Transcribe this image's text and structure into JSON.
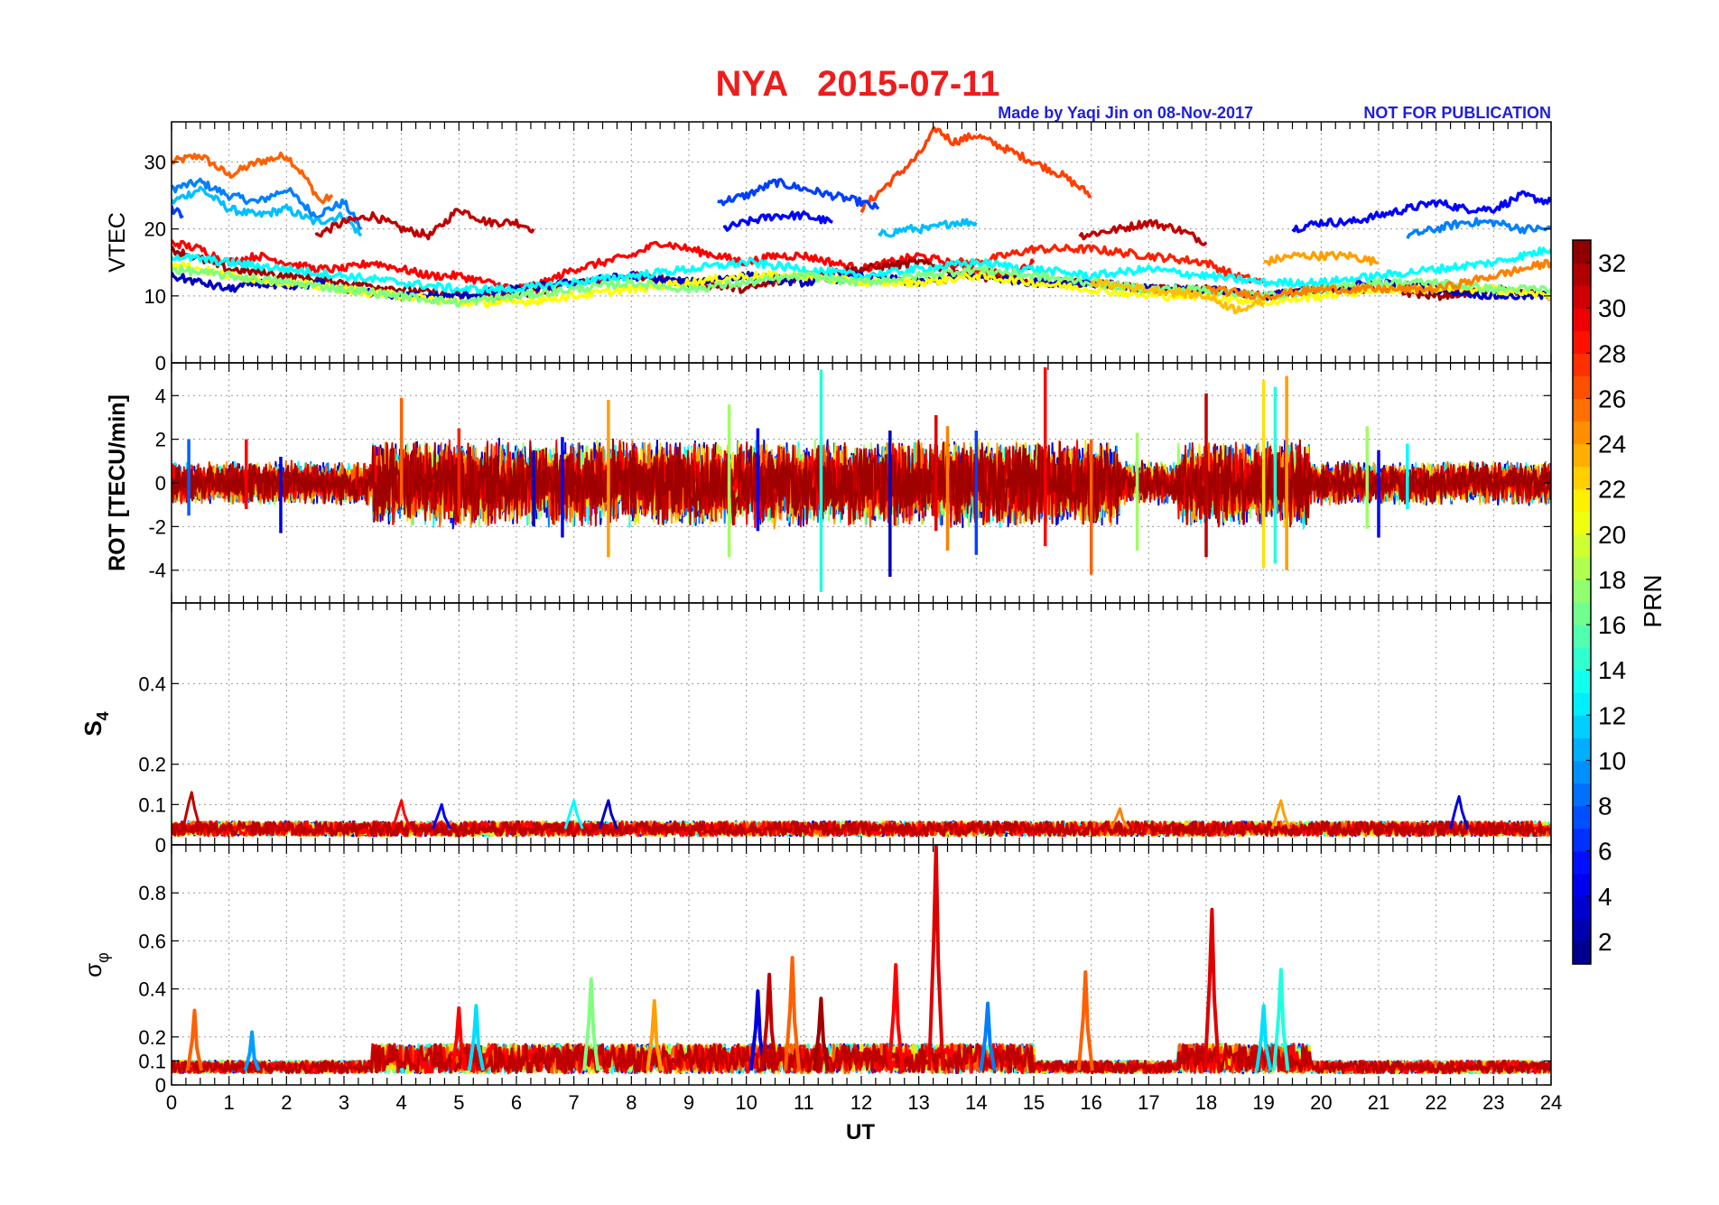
{
  "chart_data": {
    "type": "line",
    "title": "NYA   2015-07-11",
    "credit": "Made by Yaqi Jin on 08-Nov-2017",
    "notice": "NOT FOR PUBLICATION",
    "xlabel": "UT",
    "xlim": [
      0,
      24
    ],
    "xticks": [
      "0",
      "1",
      "2",
      "3",
      "4",
      "5",
      "6",
      "7",
      "8",
      "9",
      "10",
      "11",
      "12",
      "13",
      "14",
      "15",
      "16",
      "17",
      "18",
      "19",
      "20",
      "21",
      "22",
      "23",
      "24"
    ],
    "colorbar": {
      "label": "PRN",
      "range": [
        1,
        33
      ],
      "ticks": [
        "2",
        "4",
        "6",
        "8",
        "10",
        "12",
        "14",
        "16",
        "18",
        "20",
        "22",
        "24",
        "26",
        "28",
        "30",
        "32"
      ],
      "colormap": "jet"
    },
    "panels": [
      {
        "id": "vtec",
        "ylabel": "VTEC",
        "ylim": [
          0,
          36
        ],
        "yticks": [
          "0",
          "10",
          "20",
          "30"
        ],
        "series": [
          {
            "prn": 26,
            "x": [
              0.0,
              0.5,
              1.0,
              1.5,
              2.0,
              2.3,
              2.6,
              2.8
            ],
            "y": [
              30,
              31,
              28,
              30,
              31,
              28,
              24,
              25
            ]
          },
          {
            "prn": 9,
            "x": [
              0.0,
              0.5,
              1.0,
              1.5,
              2.0,
              2.5,
              3.0,
              3.3
            ],
            "y": [
              26,
              27,
              25,
              24,
              26,
              22,
              24,
              20
            ]
          },
          {
            "prn": 11,
            "x": [
              0.0,
              0.5,
              1.0,
              1.5,
              2.0,
              2.5,
              3.0,
              3.3
            ],
            "y": [
              24,
              26,
              23,
              22,
              23,
              21,
              22,
              19
            ]
          },
          {
            "prn": 31,
            "x": [
              2.5,
              3.0,
              3.5,
              4.0,
              4.5,
              5.0,
              5.5,
              6.0,
              6.3
            ],
            "y": [
              19,
              21,
              22,
              20,
              19,
              23,
              21,
              21,
              20
            ]
          },
          {
            "prn": 7,
            "x": [
              0.0,
              0.2
            ],
            "y": [
              23,
              22
            ]
          },
          {
            "prn": 27,
            "x": [
              12.0,
              12.5,
              13.0,
              13.3,
              13.6,
              14.0,
              14.5,
              15.0,
              15.5,
              16.0
            ],
            "y": [
              23,
              27,
              31,
              35,
              33,
              34,
              32,
              30,
              28,
              25
            ]
          },
          {
            "prn": 7,
            "x": [
              9.5,
              10.0,
              10.5,
              11.0,
              11.5,
              12.0,
              12.3
            ],
            "y": [
              24,
              25,
              27,
              26,
              25,
              24,
              23
            ]
          },
          {
            "prn": 5,
            "x": [
              9.6,
              10.0,
              10.5,
              11.0,
              11.5
            ],
            "y": [
              20,
              21,
              22,
              22,
              21
            ]
          },
          {
            "prn": 11,
            "x": [
              12.3,
              12.8,
              13.2,
              13.6,
              14.0
            ],
            "y": [
              19,
              20,
              20,
              21,
              21
            ]
          },
          {
            "prn": 31,
            "x": [
              15.8,
              16.5,
              17.0,
              17.5,
              18.0
            ],
            "y": [
              19,
              20,
              21,
              20,
              18
            ]
          },
          {
            "prn": 5,
            "x": [
              19.5,
              20.0,
              20.5,
              21.0,
              21.5,
              22.0,
              22.5,
              23.0,
              23.5,
              24.0
            ],
            "y": [
              20,
              21,
              21,
              22,
              23,
              24,
              23,
              23,
              25,
              24
            ]
          },
          {
            "prn": 9,
            "x": [
              21.5,
              22.0,
              22.5,
              23.0,
              23.5,
              24.0
            ],
            "y": [
              19,
              20,
              21,
              21,
              20,
              20
            ]
          },
          {
            "prn": 24,
            "x": [
              19.0,
              19.5,
              20.0,
              20.5,
              21.0
            ],
            "y": [
              15,
              16,
              16,
              16,
              15
            ]
          },
          {
            "prn": 28,
            "x": [
              13.5,
              14.0,
              14.5,
              15.0,
              16.0,
              17.0,
              18.0,
              18.5,
              19.0
            ],
            "y": [
              15,
              15,
              16,
              17,
              17,
              16,
              15,
              13,
              12
            ]
          },
          {
            "prn": 29,
            "x": [
              0.0,
              0.5,
              1.0,
              1.5,
              2.0,
              2.5,
              3.0,
              3.5,
              4.0,
              4.5,
              5.0,
              5.5,
              6.0,
              6.5,
              7.0,
              7.5,
              8.0,
              8.5,
              9.0,
              9.5,
              10.0,
              10.5,
              11.0,
              11.5,
              12.0,
              12.5,
              13.0,
              13.5,
              14.0,
              14.5,
              15.0
            ],
            "y": [
              18,
              17,
              15,
              16,
              15,
              14,
              14,
              15,
              14,
              13,
              13,
              12,
              11,
              12,
              14,
              15,
              16,
              18,
              17,
              16,
              15,
              16,
              16,
              15,
              14,
              15,
              16,
              15,
              14,
              13,
              15
            ]
          },
          {
            "prn": 32,
            "x": [
              0.0,
              1.0,
              2.0,
              3.0,
              4.0,
              5.0,
              6.0,
              7.0,
              8.0,
              9.0,
              10.0,
              11.0,
              12.0,
              13.0,
              14.0,
              15.0,
              16.0,
              17.0,
              18.0,
              19.0,
              20.0,
              21.0,
              22.0,
              23.0,
              24.0
            ],
            "y": [
              17,
              14,
              13,
              12,
              11,
              10,
              10,
              12,
              13,
              12,
              11,
              13,
              14,
              15,
              13,
              12,
              12,
              11,
              11,
              10,
              11,
              11,
              10,
              11,
              10
            ]
          },
          {
            "prn": 3,
            "x": [
              0.0,
              0.5,
              1.0,
              1.5,
              2.0,
              2.5,
              3.0,
              4.0,
              5.0,
              6.0,
              7.0,
              8.0,
              9.0,
              10.0,
              11.0,
              12.0,
              13.0,
              14.0,
              15.0,
              16.0,
              17.0,
              18.0,
              19.0,
              20.0,
              21.0,
              22.0,
              23.0,
              24.0
            ],
            "y": [
              13,
              12,
              11,
              12,
              11,
              12,
              11,
              10,
              10,
              11,
              12,
              13,
              12,
              13,
              12,
              13,
              12,
              13,
              12,
              12,
              11,
              11,
              10,
              11,
              12,
              11,
              10,
              10
            ]
          },
          {
            "prn": 13,
            "x": [
              0.0,
              1.0,
              2.0,
              3.0,
              4.0,
              5.0,
              6.0,
              7.0,
              8.0,
              9.0,
              10.0,
              11.0,
              12.0,
              13.0,
              14.0,
              15.0,
              16.0,
              17.0,
              18.0,
              19.0,
              20.0,
              21.0,
              22.0,
              23.0,
              24.0
            ],
            "y": [
              16,
              15,
              14,
              13,
              12,
              11,
              11,
              12,
              13,
              14,
              15,
              14,
              13,
              14,
              15,
              14,
              13,
              14,
              13,
              12,
              12,
              13,
              14,
              15,
              17
            ]
          },
          {
            "prn": 21,
            "x": [
              0.0,
              1.0,
              2.0,
              3.0,
              4.0,
              5.0,
              6.0,
              7.0,
              8.0,
              9.0,
              10.0,
              11.0,
              12.0,
              13.0,
              14.0,
              15.0,
              16.0,
              17.0,
              18.0,
              19.0,
              20.0,
              21.0,
              22.0,
              23.0,
              24.0
            ],
            "y": [
              15,
              13,
              12,
              11,
              10,
              9,
              9,
              10,
              11,
              12,
              13,
              13,
              12,
              12,
              13,
              12,
              11,
              10,
              10,
              9,
              10,
              11,
              11,
              11,
              10
            ]
          },
          {
            "prn": 17,
            "x": [
              0.0,
              1.0,
              2.0,
              3.0,
              4.0,
              5.0,
              6.0,
              7.0,
              8.0,
              9.0,
              10.0,
              11.0,
              12.0,
              13.0,
              14.0,
              15.0,
              16.0,
              17.0,
              18.0,
              19.0,
              20.0,
              21.0,
              22.0,
              23.0,
              24.0
            ],
            "y": [
              14,
              13,
              12,
              11,
              10,
              9,
              10,
              11,
              12,
              11,
              12,
              13,
              12,
              13,
              14,
              13,
              12,
              11,
              11,
              10,
              11,
              12,
              12,
              11,
              11
            ]
          },
          {
            "prn": 25,
            "x": [
              18.0,
              19.0,
              20.0,
              21.0,
              22.0,
              23.0,
              24.0
            ],
            "y": [
              11,
              10,
              11,
              11,
              11,
              13,
              15
            ]
          },
          {
            "prn": 23,
            "x": [
              16.0,
              17.0,
              18.0,
              18.5,
              19.0
            ],
            "y": [
              12,
              11,
              10,
              8,
              9
            ]
          }
        ]
      },
      {
        "id": "rot",
        "ylabel": "ROT [TECU/min]",
        "ylim": [
          -5.5,
          5.5
        ],
        "yticks": [
          "-4",
          "-2",
          "0",
          "2",
          "4"
        ],
        "spikes": [
          {
            "prn": 8,
            "x": 0.3,
            "min": -1.5,
            "max": 2.0
          },
          {
            "prn": 29,
            "x": 1.3,
            "min": -1.2,
            "max": 2.0
          },
          {
            "prn": 4,
            "x": 1.9,
            "min": -2.3,
            "max": 1.2
          },
          {
            "prn": 26,
            "x": 4.0,
            "min": -1.0,
            "max": 3.9
          },
          {
            "prn": 28,
            "x": 5.0,
            "min": -1.5,
            "max": 2.5
          },
          {
            "prn": 3,
            "x": 6.3,
            "min": -2.0,
            "max": 1.5
          },
          {
            "prn": 5,
            "x": 6.8,
            "min": -2.5,
            "max": 2.1
          },
          {
            "prn": 24,
            "x": 7.6,
            "min": -3.4,
            "max": 3.8
          },
          {
            "prn": 18,
            "x": 9.7,
            "min": -3.4,
            "max": 3.6
          },
          {
            "prn": 5,
            "x": 10.2,
            "min": -2.2,
            "max": 2.5
          },
          {
            "prn": 14,
            "x": 11.3,
            "min": -5.0,
            "max": 5.2
          },
          {
            "prn": 3,
            "x": 12.5,
            "min": -4.3,
            "max": 2.4
          },
          {
            "prn": 30,
            "x": 13.3,
            "min": -2.2,
            "max": 3.1
          },
          {
            "prn": 25,
            "x": 13.5,
            "min": -3.1,
            "max": 2.6
          },
          {
            "prn": 7,
            "x": 14.0,
            "min": -3.3,
            "max": 2.4
          },
          {
            "prn": 29,
            "x": 15.2,
            "min": -2.9,
            "max": 5.3
          },
          {
            "prn": 26,
            "x": 16.0,
            "min": -4.2,
            "max": 2.0
          },
          {
            "prn": 18,
            "x": 16.8,
            "min": -3.1,
            "max": 2.3
          },
          {
            "prn": 31,
            "x": 18.0,
            "min": -3.4,
            "max": 4.1
          },
          {
            "prn": 22,
            "x": 19.0,
            "min": -3.9,
            "max": 4.7
          },
          {
            "prn": 14,
            "x": 19.2,
            "min": -3.7,
            "max": 4.4
          },
          {
            "prn": 24,
            "x": 19.4,
            "min": -4.0,
            "max": 4.9
          },
          {
            "prn": 18,
            "x": 20.8,
            "min": -2.1,
            "max": 2.6
          },
          {
            "prn": 5,
            "x": 21.0,
            "min": -2.5,
            "max": 1.5
          },
          {
            "prn": 13,
            "x": 21.5,
            "min": -1.2,
            "max": 1.8
          }
        ]
      },
      {
        "id": "s4",
        "ylabel": "S4",
        "ylim": [
          0,
          0.6
        ],
        "yticks": [
          "0",
          "0.1",
          "0.2",
          "0.4"
        ],
        "spikes": [
          {
            "prn": 31,
            "x": 0.35,
            "max": 0.13
          },
          {
            "prn": 29,
            "x": 4.0,
            "max": 0.11
          },
          {
            "prn": 5,
            "x": 4.7,
            "max": 0.1
          },
          {
            "prn": 13,
            "x": 7.0,
            "max": 0.11
          },
          {
            "prn": 3,
            "x": 7.6,
            "max": 0.11
          },
          {
            "prn": 25,
            "x": 16.5,
            "max": 0.09
          },
          {
            "prn": 24,
            "x": 19.3,
            "max": 0.11
          },
          {
            "prn": 4,
            "x": 22.4,
            "max": 0.12
          }
        ]
      },
      {
        "id": "sigma_phi",
        "ylabel": "σφ",
        "ylim": [
          0,
          1
        ],
        "yticks": [
          "0",
          "0.1",
          "0.2",
          "0.4",
          "0.6",
          "0.8"
        ],
        "spikes": [
          {
            "prn": 26,
            "x": 0.4,
            "max": 0.31
          },
          {
            "prn": 10,
            "x": 1.4,
            "max": 0.22
          },
          {
            "prn": 29,
            "x": 5.0,
            "max": 0.32
          },
          {
            "prn": 12,
            "x": 5.3,
            "max": 0.33
          },
          {
            "prn": 17,
            "x": 7.3,
            "max": 0.44
          },
          {
            "prn": 24,
            "x": 8.4,
            "max": 0.35
          },
          {
            "prn": 4,
            "x": 10.2,
            "max": 0.39
          },
          {
            "prn": 31,
            "x": 10.4,
            "max": 0.46
          },
          {
            "prn": 26,
            "x": 10.8,
            "max": 0.53
          },
          {
            "prn": 32,
            "x": 11.3,
            "max": 0.36
          },
          {
            "prn": 29,
            "x": 12.6,
            "max": 0.5
          },
          {
            "prn": 30,
            "x": 13.3,
            "max": 1.0
          },
          {
            "prn": 9,
            "x": 14.2,
            "max": 0.34
          },
          {
            "prn": 26,
            "x": 15.9,
            "max": 0.47
          },
          {
            "prn": 30,
            "x": 18.1,
            "max": 0.73
          },
          {
            "prn": 14,
            "x": 19.3,
            "max": 0.48
          },
          {
            "prn": 12,
            "x": 19.0,
            "max": 0.33
          }
        ]
      }
    ]
  }
}
